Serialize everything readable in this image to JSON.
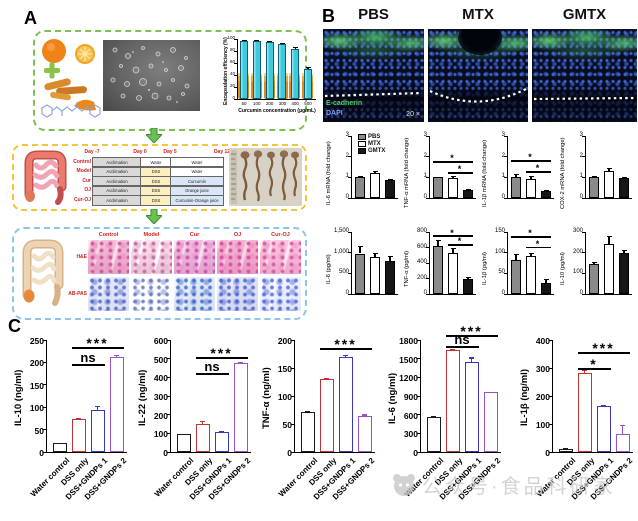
{
  "figure": {
    "panel_a_label": "A",
    "panel_b_label": "B",
    "panel_c_label": "C"
  },
  "panel_a": {
    "timeline_table": {
      "day_labels": [
        "Day -7",
        "Day 0",
        "Day 5",
        "Day 12"
      ],
      "rows": [
        {
          "group": "Control",
          "phases": [
            "Acclimation",
            "Water",
            "Water"
          ]
        },
        {
          "group": "Model",
          "phases": [
            "Acclimation",
            "DSS",
            "Water"
          ]
        },
        {
          "group": "Cur",
          "phases": [
            "Acclimation",
            "DSS",
            "Curcumin"
          ]
        },
        {
          "group": "OJ",
          "phases": [
            "Acclimation",
            "DSS",
            "Orange juice"
          ]
        },
        {
          "group": "Cur-OJ",
          "phases": [
            "Acclimation",
            "DSS",
            "Curcumin-Orange juice"
          ]
        }
      ]
    },
    "histology": {
      "columns": [
        "Control",
        "Model",
        "Cur",
        "OJ",
        "Cur-OJ"
      ],
      "row_labels": [
        "H&E",
        "AB-PAS"
      ]
    }
  },
  "panel_b": {
    "conditions": [
      "PBS",
      "MTX",
      "GMTX"
    ],
    "image_labels": {
      "stain1": "E-cadherin",
      "stain2": "DAPI",
      "magnification": "20 ×"
    },
    "legend": [
      "PBS",
      "MTX",
      "GMTX"
    ],
    "bar_fills": [
      "#8a8a8a",
      "#ffffff",
      "#161616"
    ]
  },
  "panel_c": {
    "categories": [
      "Water control",
      "DSS only",
      "DSS+GNDPs 1",
      "DSS+GNDPs 2"
    ],
    "bar_colors": [
      "#1a1a1a",
      "#c03434",
      "#3838bc",
      "#9a52c8"
    ]
  },
  "watermark": {
    "text": "公众号·食品科研家"
  },
  "chart_data": [
    {
      "id": "encapsulation",
      "type": "bar",
      "kind": "e",
      "ylabel": "Encapsulation efficiency (%)",
      "xlabel": "Curcumin concentration (μg/mL)",
      "categories": [
        "50",
        "100",
        "200",
        "300",
        "400",
        "500"
      ],
      "values": [
        97,
        97,
        95,
        91,
        84,
        50
      ],
      "errors": [
        2,
        2,
        2,
        2,
        3,
        3
      ],
      "ylim": [
        0,
        100
      ],
      "yticks": [
        {
          "v": 0,
          "label": "0"
        },
        {
          "v": 20,
          "label": "20"
        },
        {
          "v": 40,
          "label": "40"
        },
        {
          "v": 60,
          "label": "60"
        },
        {
          "v": 80,
          "label": "80"
        },
        {
          "v": 100,
          "label": "100"
        }
      ],
      "bar_color": "#3ec9dd",
      "grid": false
    },
    {
      "id": "il6_mrna",
      "type": "bar",
      "kind": "b",
      "ylabel": "IL-6 mRNA (fold change)",
      "categories": [
        "PBS",
        "MTX",
        "GMTX"
      ],
      "values": [
        1.0,
        1.2,
        0.85
      ],
      "errors": [
        0.08,
        0.1,
        0.06
      ],
      "ylim": [
        0,
        3
      ],
      "yticks": [
        {
          "v": 0,
          "label": "0"
        },
        {
          "v": 1,
          "label": "1"
        },
        {
          "v": 2,
          "label": "2"
        },
        {
          "v": 3,
          "label": "3"
        }
      ],
      "legend": true,
      "sig": []
    },
    {
      "id": "tnfa_mrna",
      "type": "bar",
      "kind": "b",
      "ylabel": "TNF-α mRNA (fold change)",
      "categories": [
        "PBS",
        "MTX",
        "GMTX"
      ],
      "values": [
        1.0,
        0.98,
        0.4
      ],
      "errors": [
        0.03,
        0.1,
        0.05
      ],
      "ylim": [
        0,
        3
      ],
      "yticks": [
        {
          "v": 0,
          "label": "0"
        },
        {
          "v": 1,
          "label": "1"
        },
        {
          "v": 2,
          "label": "2"
        },
        {
          "v": 3,
          "label": "3"
        }
      ],
      "sig": [
        {
          "from": 0,
          "to": 2,
          "label": "*",
          "y": 1.78
        },
        {
          "from": 1,
          "to": 2,
          "label": "*",
          "y": 1.25
        }
      ]
    },
    {
      "id": "il1b_mrna",
      "type": "bar",
      "kind": "b",
      "ylabel": "IL-1β mRNA (fold change)",
      "categories": [
        "PBS",
        "MTX",
        "GMTX"
      ],
      "values": [
        1.0,
        0.93,
        0.33
      ],
      "errors": [
        0.16,
        0.13,
        0.07
      ],
      "ylim": [
        0,
        3
      ],
      "yticks": [
        {
          "v": 0,
          "label": "0"
        },
        {
          "v": 1,
          "label": "1"
        },
        {
          "v": 2,
          "label": "2"
        },
        {
          "v": 3,
          "label": "3"
        }
      ],
      "sig": [
        {
          "from": 0,
          "to": 2,
          "label": "*",
          "y": 1.82
        },
        {
          "from": 1,
          "to": 2,
          "label": "*",
          "y": 1.3
        }
      ]
    },
    {
      "id": "cox2_mrna",
      "type": "bar",
      "kind": "b",
      "ylabel": "COX-2 mRNA (fold change)",
      "categories": [
        "PBS",
        "MTX",
        "GMTX"
      ],
      "values": [
        1.03,
        1.3,
        0.95
      ],
      "errors": [
        0.05,
        0.16,
        0.05
      ],
      "ylim": [
        0,
        3
      ],
      "yticks": [
        {
          "v": 0,
          "label": "0"
        },
        {
          "v": 1,
          "label": "1"
        },
        {
          "v": 2,
          "label": "2"
        },
        {
          "v": 3,
          "label": "3"
        }
      ],
      "sig": []
    },
    {
      "id": "il6_protein",
      "type": "bar",
      "kind": "b",
      "ylabel": "IL-6 (pg/ml)",
      "categories": [
        "PBS",
        "MTX",
        "GMTX"
      ],
      "values": [
        980,
        905,
        790
      ],
      "errors": [
        190,
        85,
        140
      ],
      "ylim": [
        0,
        1500
      ],
      "yticks": [
        {
          "v": 0,
          "label": "0"
        },
        {
          "v": 500,
          "label": "500"
        },
        {
          "v": 1000,
          "label": "1,000"
        },
        {
          "v": 1500,
          "label": "1,500"
        }
      ],
      "sig": []
    },
    {
      "id": "tnfa_protein",
      "type": "bar",
      "kind": "b",
      "ylabel": "TNF-α (pg/ml)",
      "categories": [
        "PBS",
        "MTX",
        "GMTX"
      ],
      "values": [
        615,
        535,
        190
      ],
      "errors": [
        85,
        55,
        35
      ],
      "ylim": [
        0,
        800
      ],
      "yticks": [
        {
          "v": 0,
          "label": "0"
        },
        {
          "v": 200,
          "label": "200"
        },
        {
          "v": 400,
          "label": "400"
        },
        {
          "v": 600,
          "label": "600"
        },
        {
          "v": 800,
          "label": "800"
        }
      ],
      "sig": [
        {
          "from": 0,
          "to": 2,
          "label": "*",
          "y": 755
        },
        {
          "from": 1,
          "to": 2,
          "label": "*",
          "y": 645
        }
      ]
    },
    {
      "id": "il1b_protein",
      "type": "bar",
      "kind": "b",
      "ylabel": "IL-1β (pg/ml)",
      "categories": [
        "PBS",
        "MTX",
        "GMTX"
      ],
      "values": [
        83,
        93,
        27
      ],
      "errors": [
        13,
        6,
        9
      ],
      "ylim": [
        0,
        150
      ],
      "yticks": [
        {
          "v": 0,
          "label": "0"
        },
        {
          "v": 50,
          "label": "50"
        },
        {
          "v": 100,
          "label": "100"
        },
        {
          "v": 150,
          "label": "150"
        }
      ],
      "sig": [
        {
          "from": 0,
          "to": 2,
          "label": "*",
          "y": 140
        },
        {
          "from": 1,
          "to": 2,
          "label": "*",
          "y": 114
        }
      ]
    },
    {
      "id": "il10_protein",
      "type": "bar",
      "kind": "b",
      "ylabel": "IL-10 (pg/ml)",
      "categories": [
        "PBS",
        "MTX",
        "GMTX"
      ],
      "values": [
        145,
        240,
        197
      ],
      "errors": [
        10,
        42,
        14
      ],
      "ylim": [
        0,
        300
      ],
      "yticks": [
        {
          "v": 0,
          "label": "0"
        },
        {
          "v": 100,
          "label": "100"
        },
        {
          "v": 200,
          "label": "200"
        },
        {
          "v": 300,
          "label": "300"
        }
      ],
      "sig": []
    },
    {
      "id": "c_il10",
      "type": "bar",
      "kind": "c",
      "ylabel": "IL-10 (ng/ml)",
      "categories": [
        "Water control",
        "DSS only",
        "DSS+GNDPs 1",
        "DSS+GNDPs 2"
      ],
      "values": [
        20,
        74,
        93,
        213
      ],
      "errors": [
        1,
        3,
        9,
        3
      ],
      "ylim": [
        0,
        250
      ],
      "yticks": [
        {
          "v": 0,
          "label": "0"
        },
        {
          "v": 50,
          "label": "50"
        },
        {
          "v": 100,
          "label": "100"
        },
        {
          "v": 150,
          "label": "150"
        },
        {
          "v": 200,
          "label": "200"
        },
        {
          "v": 250,
          "label": "250"
        }
      ],
      "sig": [
        {
          "from": 1,
          "to": 3,
          "label": "***",
          "y": 235
        },
        {
          "from": 1,
          "to": 2,
          "label": "ns",
          "y": 196
        }
      ]
    },
    {
      "id": "c_il22",
      "type": "bar",
      "kind": "c",
      "ylabel": "IL-22 (ng/ml)",
      "categories": [
        "Water control",
        "DSS only",
        "DSS+GNDPs 1",
        "DSS+GNDPs 2"
      ],
      "values": [
        95,
        148,
        105,
        475
      ],
      "errors": [
        4,
        18,
        5,
        7
      ],
      "ylim": [
        0,
        600
      ],
      "yticks": [
        {
          "v": 0,
          "label": "0"
        },
        {
          "v": 100,
          "label": "100"
        },
        {
          "v": 200,
          "label": "200"
        },
        {
          "v": 300,
          "label": "300"
        },
        {
          "v": 400,
          "label": "400"
        },
        {
          "v": 500,
          "label": "500"
        },
        {
          "v": 600,
          "label": "600"
        }
      ],
      "sig": [
        {
          "from": 1,
          "to": 3,
          "label": "***",
          "y": 508
        },
        {
          "from": 1,
          "to": 2,
          "label": "ns",
          "y": 422
        }
      ]
    },
    {
      "id": "c_tnfa",
      "type": "bar",
      "kind": "c",
      "ylabel": "TNF-α (ng/ml)",
      "categories": [
        "Water control",
        "DSS only",
        "DSS+GNDPs 1",
        "DSS+GNDPs 2"
      ],
      "values": [
        72,
        130,
        170,
        65
      ],
      "errors": [
        2,
        2,
        4,
        2
      ],
      "ylim": [
        0,
        200
      ],
      "yticks": [
        {
          "v": 0,
          "label": "0"
        },
        {
          "v": 50,
          "label": "50"
        },
        {
          "v": 100,
          "label": "100"
        },
        {
          "v": 150,
          "label": "150"
        },
        {
          "v": 200,
          "label": "200"
        }
      ],
      "sig": [
        {
          "from": 1,
          "to": 3,
          "label": "***",
          "y": 186
        }
      ]
    },
    {
      "id": "c_il6",
      "type": "bar",
      "kind": "c",
      "ylabel": "IL-6 (ng/ml)",
      "categories": [
        "Water control",
        "DSS only",
        "DSS+GNDPs 1",
        "DSS+GNDPs 2"
      ],
      "values": [
        570,
        1640,
        1450,
        960
      ],
      "errors": [
        10,
        20,
        70,
        12
      ],
      "ylim": [
        0,
        1800
      ],
      "yticks": [
        {
          "v": 0,
          "label": "0"
        },
        {
          "v": 300,
          "label": "300"
        },
        {
          "v": 600,
          "label": "600"
        },
        {
          "v": 900,
          "label": "900"
        },
        {
          "v": 1200,
          "label": "1200"
        },
        {
          "v": 1500,
          "label": "1500"
        },
        {
          "v": 1800,
          "label": "1800"
        }
      ],
      "sig": [
        {
          "from": 1,
          "to": 3,
          "label": "***",
          "y": 1885
        },
        {
          "from": 1,
          "to": 2,
          "label": "ns",
          "y": 1705
        }
      ]
    },
    {
      "id": "c_il1b",
      "type": "bar",
      "kind": "c",
      "ylabel": "IL-1β (ng/ml)",
      "categories": [
        "Water control",
        "DSS only",
        "DSS+GNDPs 1",
        "DSS+GNDPs 2"
      ],
      "values": [
        10,
        283,
        163,
        63
      ],
      "errors": [
        3,
        10,
        5,
        33
      ],
      "ylim": [
        0,
        400
      ],
      "yticks": [
        {
          "v": 0,
          "label": "0"
        },
        {
          "v": 100,
          "label": "100"
        },
        {
          "v": 200,
          "label": "200"
        },
        {
          "v": 300,
          "label": "300"
        },
        {
          "v": 400,
          "label": "400"
        }
      ],
      "sig": [
        {
          "from": 1,
          "to": 3,
          "label": "***",
          "y": 358
        },
        {
          "from": 1,
          "to": 2,
          "label": "*",
          "y": 300
        }
      ]
    }
  ]
}
